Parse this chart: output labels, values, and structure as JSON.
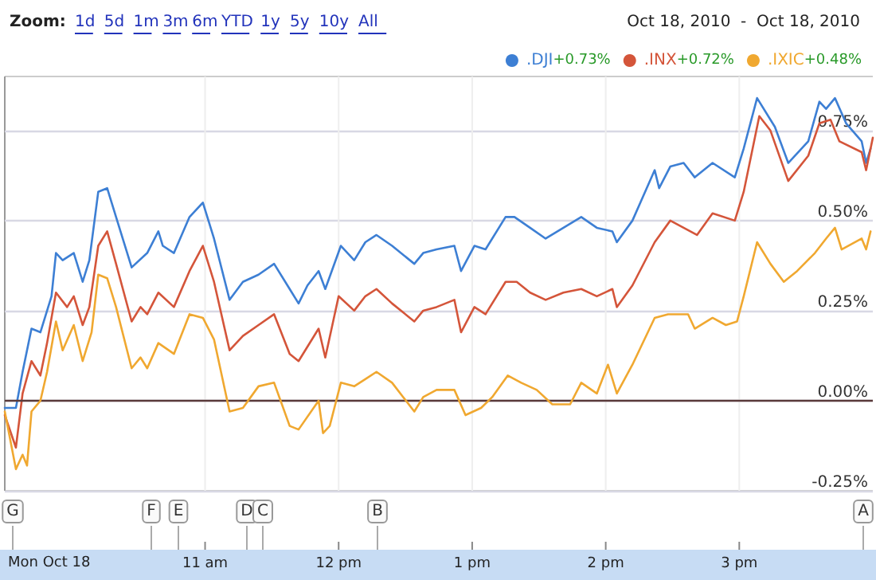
{
  "chart_data": {
    "type": "line",
    "subtitle": "Oct 18, 2010  -  Oct 18, 2010",
    "xlabel": "Mon Oct 18",
    "series": [
      {
        "name": ".DJI",
        "color": "#3d7fd4",
        "x": [
          "2010-10-18T09:30",
          "2010-10-18T09:35",
          "2010-10-18T09:38",
          "2010-10-18T09:42",
          "2010-10-18T09:46",
          "2010-10-18T09:51",
          "2010-10-18T09:53",
          "2010-10-18T09:56",
          "2010-10-18T10:01",
          "2010-10-18T10:05",
          "2010-10-18T10:08",
          "2010-10-18T10:12",
          "2010-10-18T10:16",
          "2010-10-18T10:20",
          "2010-10-18T10:27",
          "2010-10-18T10:34",
          "2010-10-18T10:39",
          "2010-10-18T10:41",
          "2010-10-18T10:46",
          "2010-10-18T10:53",
          "2010-10-18T10:59",
          "2010-10-18T11:04",
          "2010-10-18T11:11",
          "2010-10-18T11:17",
          "2010-10-18T11:24",
          "2010-10-18T11:31",
          "2010-10-18T11:38",
          "2010-10-18T11:42",
          "2010-10-18T11:46",
          "2010-10-18T11:51",
          "2010-10-18T11:54",
          "2010-10-18T12:01",
          "2010-10-18T12:07",
          "2010-10-18T12:12",
          "2010-10-18T12:17",
          "2010-10-18T12:24",
          "2010-10-18T12:34",
          "2010-10-18T12:38",
          "2010-10-18T12:44",
          "2010-10-18T12:52",
          "2010-10-18T12:55",
          "2010-10-18T13:01",
          "2010-10-18T13:06",
          "2010-10-18T13:15",
          "2010-10-18T13:19",
          "2010-10-18T13:26",
          "2010-10-18T13:33",
          "2010-10-18T13:41",
          "2010-10-18T13:49",
          "2010-10-18T13:56",
          "2010-10-18T14:03",
          "2010-10-18T14:05",
          "2010-10-18T14:12",
          "2010-10-18T14:22",
          "2010-10-18T14:24",
          "2010-10-18T14:29",
          "2010-10-18T14:35",
          "2010-10-18T14:40",
          "2010-10-18T14:48",
          "2010-10-18T14:58",
          "2010-10-18T15:02",
          "2010-10-18T15:08",
          "2010-10-18T15:16",
          "2010-10-18T15:22",
          "2010-10-18T15:31",
          "2010-10-18T15:36",
          "2010-10-18T15:39",
          "2010-10-18T15:43",
          "2010-10-18T15:48",
          "2010-10-18T15:55",
          "2010-10-18T15:57",
          "2010-10-18T15:59"
        ],
        "values": [
          -0.02,
          -0.02,
          0.08,
          0.2,
          0.19,
          0.29,
          0.41,
          0.39,
          0.41,
          0.33,
          0.39,
          0.58,
          0.59,
          0.51,
          0.37,
          0.41,
          0.47,
          0.43,
          0.41,
          0.51,
          0.55,
          0.45,
          0.28,
          0.33,
          0.35,
          0.38,
          0.31,
          0.27,
          0.32,
          0.36,
          0.31,
          0.43,
          0.39,
          0.44,
          0.46,
          0.43,
          0.38,
          0.41,
          0.42,
          0.43,
          0.36,
          0.43,
          0.42,
          0.51,
          0.51,
          0.48,
          0.45,
          0.48,
          0.51,
          0.48,
          0.47,
          0.44,
          0.5,
          0.64,
          0.59,
          0.65,
          0.66,
          0.62,
          0.66,
          0.62,
          0.7,
          0.84,
          0.76,
          0.66,
          0.72,
          0.83,
          0.81,
          0.84,
          0.77,
          0.72,
          0.66,
          0.7
        ]
      },
      {
        "name": ".INX",
        "color": "#d4553a",
        "x": [
          "2010-10-18T09:30",
          "2010-10-18T09:35",
          "2010-10-18T09:38",
          "2010-10-18T09:42",
          "2010-10-18T09:46",
          "2010-10-18T09:49",
          "2010-10-18T09:53",
          "2010-10-18T09:58",
          "2010-10-18T10:01",
          "2010-10-18T10:05",
          "2010-10-18T10:08",
          "2010-10-18T10:12",
          "2010-10-18T10:16",
          "2010-10-18T10:20",
          "2010-10-18T10:27",
          "2010-10-18T10:31",
          "2010-10-18T10:34",
          "2010-10-18T10:39",
          "2010-10-18T10:46",
          "2010-10-18T10:53",
          "2010-10-18T10:59",
          "2010-10-18T11:04",
          "2010-10-18T11:11",
          "2010-10-18T11:17",
          "2010-10-18T11:24",
          "2010-10-18T11:31",
          "2010-10-18T11:38",
          "2010-10-18T11:42",
          "2010-10-18T11:51",
          "2010-10-18T11:54",
          "2010-10-18T12:00",
          "2010-10-18T12:07",
          "2010-10-18T12:12",
          "2010-10-18T12:17",
          "2010-10-18T12:24",
          "2010-10-18T12:34",
          "2010-10-18T12:38",
          "2010-10-18T12:44",
          "2010-10-18T12:52",
          "2010-10-18T12:55",
          "2010-10-18T13:01",
          "2010-10-18T13:06",
          "2010-10-18T13:15",
          "2010-10-18T13:20",
          "2010-10-18T13:26",
          "2010-10-18T13:33",
          "2010-10-18T13:41",
          "2010-10-18T13:49",
          "2010-10-18T13:56",
          "2010-10-18T14:03",
          "2010-10-18T14:05",
          "2010-10-18T14:12",
          "2010-10-18T14:22",
          "2010-10-18T14:29",
          "2010-10-18T14:35",
          "2010-10-18T14:41",
          "2010-10-18T14:48",
          "2010-10-18T14:58",
          "2010-10-18T15:02",
          "2010-10-18T15:09",
          "2010-10-18T15:14",
          "2010-10-18T15:22",
          "2010-10-18T15:31",
          "2010-10-18T15:36",
          "2010-10-18T15:41",
          "2010-10-18T15:45",
          "2010-10-18T15:55",
          "2010-10-18T15:57",
          "2010-10-18T16:00"
        ],
        "values": [
          -0.04,
          -0.13,
          0.02,
          0.11,
          0.07,
          0.16,
          0.3,
          0.26,
          0.29,
          0.21,
          0.26,
          0.43,
          0.47,
          0.38,
          0.22,
          0.26,
          0.24,
          0.3,
          0.26,
          0.36,
          0.43,
          0.33,
          0.14,
          0.18,
          0.21,
          0.24,
          0.13,
          0.11,
          0.2,
          0.12,
          0.29,
          0.25,
          0.29,
          0.31,
          0.27,
          0.22,
          0.25,
          0.26,
          0.28,
          0.19,
          0.26,
          0.24,
          0.33,
          0.33,
          0.3,
          0.28,
          0.3,
          0.31,
          0.29,
          0.31,
          0.26,
          0.32,
          0.44,
          0.5,
          0.48,
          0.46,
          0.52,
          0.5,
          0.58,
          0.79,
          0.75,
          0.61,
          0.68,
          0.77,
          0.78,
          0.72,
          0.69,
          0.64,
          0.73
        ]
      },
      {
        "name": ".IXIC",
        "color": "#f0a830",
        "x": [
          "2010-10-18T09:30",
          "2010-10-18T09:35",
          "2010-10-18T09:38",
          "2010-10-18T09:40",
          "2010-10-18T09:42",
          "2010-10-18T09:46",
          "2010-10-18T09:49",
          "2010-10-18T09:53",
          "2010-10-18T09:56",
          "2010-10-18T10:01",
          "2010-10-18T10:05",
          "2010-10-18T10:09",
          "2010-10-18T10:12",
          "2010-10-18T10:16",
          "2010-10-18T10:20",
          "2010-10-18T10:27",
          "2010-10-18T10:31",
          "2010-10-18T10:34",
          "2010-10-18T10:39",
          "2010-10-18T10:46",
          "2010-10-18T10:53",
          "2010-10-18T10:59",
          "2010-10-18T11:04",
          "2010-10-18T11:11",
          "2010-10-18T11:17",
          "2010-10-18T11:24",
          "2010-10-18T11:31",
          "2010-10-18T11:38",
          "2010-10-18T11:42",
          "2010-10-18T11:51",
          "2010-10-18T11:53",
          "2010-10-18T11:56",
          "2010-10-18T12:01",
          "2010-10-18T12:07",
          "2010-10-18T12:12",
          "2010-10-18T12:17",
          "2010-10-18T12:24",
          "2010-10-18T12:29",
          "2010-10-18T12:34",
          "2010-10-18T12:38",
          "2010-10-18T12:44",
          "2010-10-18T12:52",
          "2010-10-18T12:57",
          "2010-10-18T13:04",
          "2010-10-18T13:09",
          "2010-10-18T13:16",
          "2010-10-18T13:22",
          "2010-10-18T13:29",
          "2010-10-18T13:36",
          "2010-10-18T13:44",
          "2010-10-18T13:49",
          "2010-10-18T13:56",
          "2010-10-18T14:01",
          "2010-10-18T14:05",
          "2010-10-18T14:12",
          "2010-10-18T14:22",
          "2010-10-18T14:28",
          "2010-10-18T14:37",
          "2010-10-18T14:40",
          "2010-10-18T14:48",
          "2010-10-18T14:54",
          "2010-10-18T14:59",
          "2010-10-18T15:02",
          "2010-10-18T15:08",
          "2010-10-18T15:14",
          "2010-10-18T15:20",
          "2010-10-18T15:26",
          "2010-10-18T15:34",
          "2010-10-18T15:39",
          "2010-10-18T15:43",
          "2010-10-18T15:46",
          "2010-10-18T15:55",
          "2010-10-18T15:57",
          "2010-10-18T15:59"
        ],
        "values": [
          -0.03,
          -0.19,
          -0.15,
          -0.18,
          -0.03,
          0.0,
          0.08,
          0.22,
          0.14,
          0.21,
          0.11,
          0.19,
          0.35,
          0.34,
          0.26,
          0.09,
          0.12,
          0.09,
          0.16,
          0.13,
          0.24,
          0.23,
          0.17,
          -0.03,
          -0.02,
          0.04,
          0.05,
          -0.07,
          -0.08,
          0.0,
          -0.09,
          -0.07,
          0.05,
          0.04,
          0.06,
          0.08,
          0.05,
          0.01,
          -0.03,
          0.01,
          0.03,
          0.03,
          -0.04,
          -0.02,
          0.01,
          0.07,
          0.05,
          0.03,
          -0.01,
          -0.01,
          0.05,
          0.02,
          0.1,
          0.02,
          0.1,
          0.23,
          0.24,
          0.24,
          0.2,
          0.23,
          0.21,
          0.22,
          0.29,
          0.44,
          0.38,
          0.33,
          0.36,
          0.41,
          0.45,
          0.48,
          0.42,
          0.45,
          0.42,
          0.47
        ]
      }
    ],
    "xlim": [
      "2010-10-18T09:30",
      "2010-10-18T16:00"
    ],
    "xticks": [
      {
        "value": "2010-10-18T11:00",
        "label": "11 am"
      },
      {
        "value": "2010-10-18T12:00",
        "label": "12 pm"
      },
      {
        "value": "2010-10-18T13:00",
        "label": "1 pm"
      },
      {
        "value": "2010-10-18T14:00",
        "label": "2 pm"
      },
      {
        "value": "2010-10-18T15:00",
        "label": "3 pm"
      }
    ],
    "ylim": [
      -0.25,
      0.9
    ],
    "yticks": [
      {
        "value": -0.25,
        "label": "-0.25%"
      },
      {
        "value": 0,
        "label": "0.00%"
      },
      {
        "value": 0.25,
        "label": "0.25%"
      },
      {
        "value": 0.5,
        "label": "0.50%"
      },
      {
        "value": 0.75,
        "label": "0.75%"
      }
    ],
    "ref_lines": [
      {
        "axis": "y",
        "value": 0,
        "color": "#5a3a3a"
      }
    ],
    "grid": true,
    "legend": "top right",
    "marker": "none",
    "line_style": "solid",
    "annotations": [
      "Zoom:",
      "1d",
      "5d",
      "1m",
      "3m",
      "6m",
      "YTD",
      "1y",
      "5y",
      "10y",
      "All",
      "G",
      "F",
      "E",
      "D",
      "C",
      "B",
      "A",
      "+0.73%",
      "+0.72%",
      "+0.48%"
    ]
  }
}
